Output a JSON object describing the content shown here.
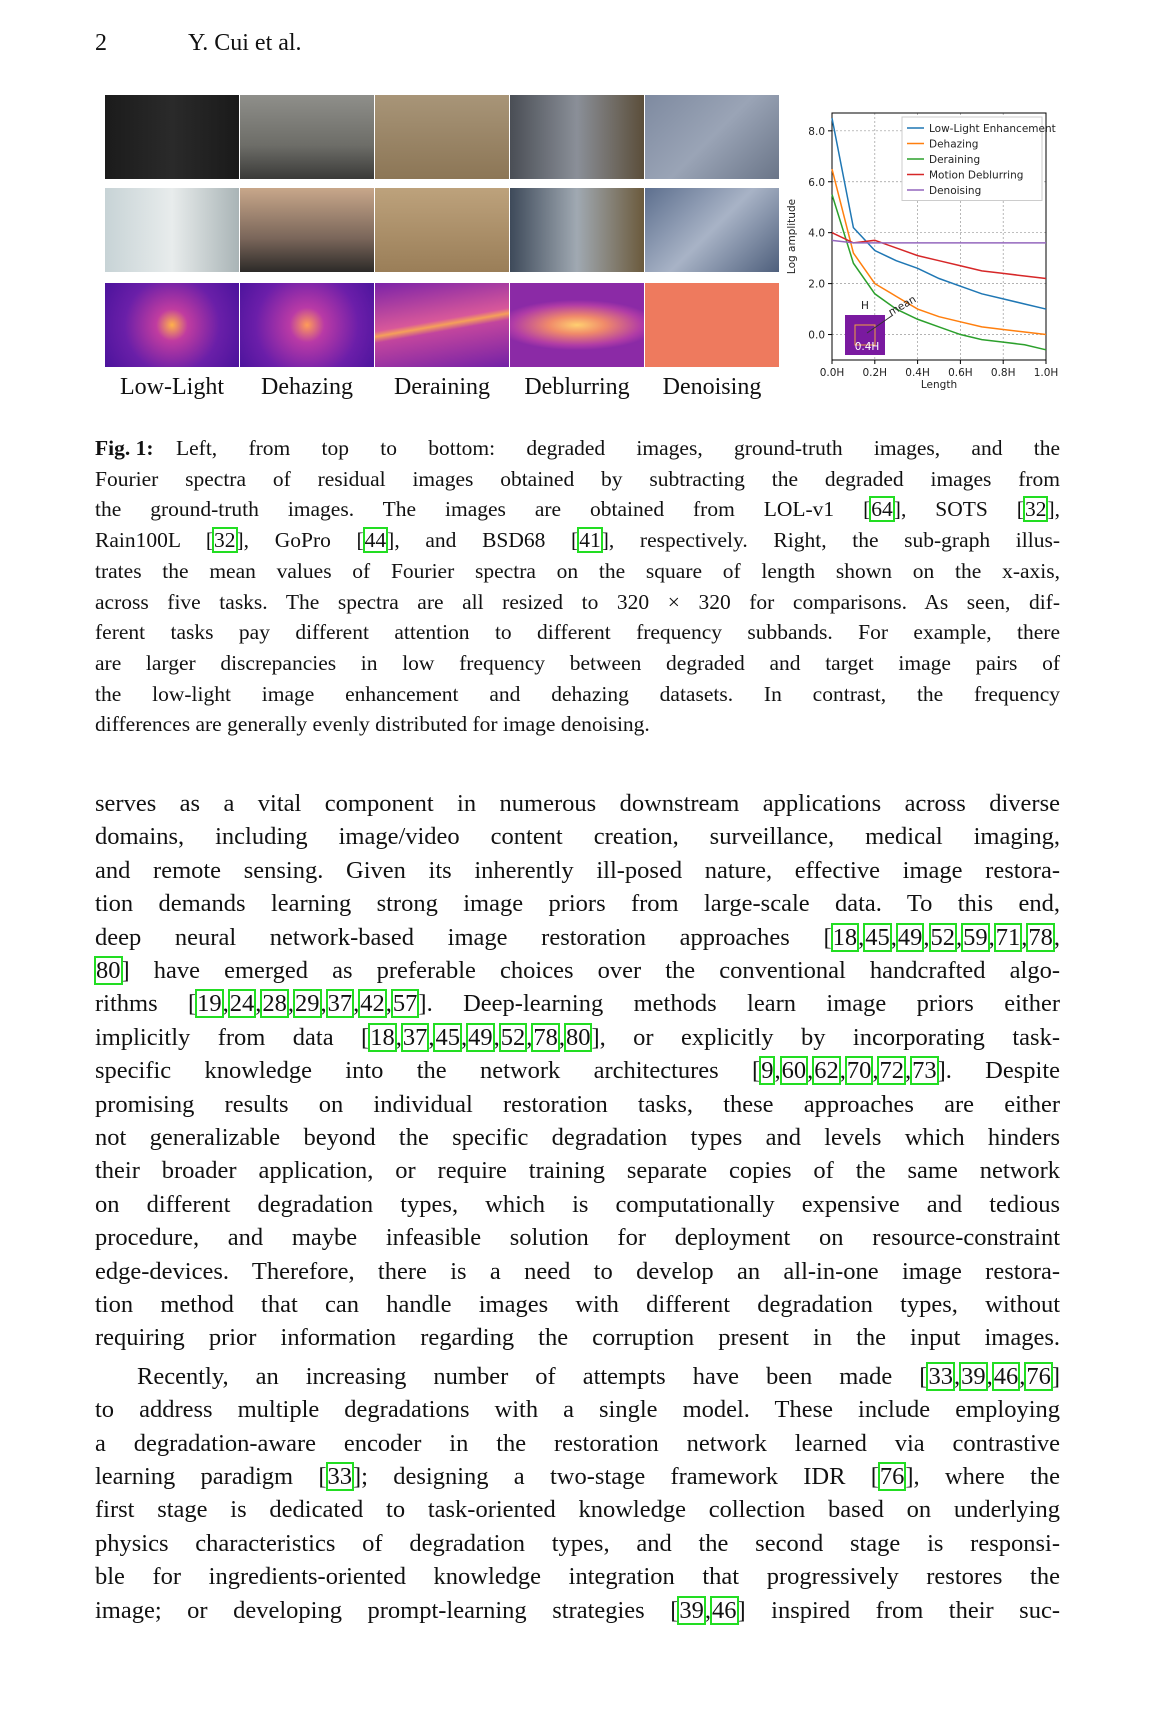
{
  "header": {
    "page_number": "2",
    "authors": "Y. Cui et al."
  },
  "figure": {
    "labels": [
      "Low-Light",
      "Dehazing",
      "Deraining",
      "Deblurring",
      "Denoising"
    ],
    "caption": {
      "label": "Fig. 1:",
      "lines": [
        "Left, from top to bottom: degraded images, ground-truth images, and the",
        "Fourier spectra of residual images obtained by subtracting the degraded images from",
        "the ground-truth images. The images are obtained from LOL-v1 [64], SOTS [32],",
        "Rain100L [32], GoPro [44], and BSD68 [41], respectively. Right, the sub-graph illus-",
        "trates the mean values of Fourier spectra on the square of length shown on the x-axis,",
        "across five tasks. The spectra are all resized to 320 × 320 for comparisons. As seen, dif-",
        "ferent tasks pay different attention to different frequency subbands. For example, there",
        "are larger discrepancies in low frequency between degraded and target image pairs of",
        "the low-light image enhancement and dehazing datasets. In contrast, the frequency",
        "differences are generally evenly distributed for image denoising."
      ]
    }
  },
  "chart_data": {
    "type": "line",
    "x_label": "Length",
    "y_label": "Log amplitude",
    "x": [
      0,
      0.1,
      0.2,
      0.3,
      0.4,
      0.5,
      0.6,
      0.7,
      0.8,
      0.9,
      1.0
    ],
    "xlim": [
      0,
      1.0
    ],
    "ylim": [
      -1.0,
      8.7
    ],
    "xticks": [
      {
        "value": 0,
        "label": "0.0H"
      },
      {
        "value": 0.2,
        "label": "0.2H"
      },
      {
        "value": 0.4,
        "label": "0.4H"
      },
      {
        "value": 0.6,
        "label": "0.6H"
      },
      {
        "value": 0.8,
        "label": "0.8H"
      },
      {
        "value": 1.0,
        "label": "1.0H"
      }
    ],
    "yticks": [
      {
        "value": 0,
        "label": "0.0"
      },
      {
        "value": 2,
        "label": "2.0"
      },
      {
        "value": 4,
        "label": "4.0"
      },
      {
        "value": 6,
        "label": "6.0"
      },
      {
        "value": 8,
        "label": "8.0"
      }
    ],
    "grid": true,
    "legend": "upper right",
    "inset_labels": [
      "H",
      "mean",
      "0.4H"
    ],
    "series": [
      {
        "name": "Low-Light Enhancement",
        "color": "#1f77b4",
        "values": [
          8.5,
          4.2,
          3.3,
          2.9,
          2.6,
          2.2,
          1.9,
          1.6,
          1.4,
          1.2,
          1.0
        ]
      },
      {
        "name": "Dehazing",
        "color": "#ff7f0e",
        "values": [
          6.5,
          3.2,
          2.0,
          1.5,
          1.0,
          0.7,
          0.5,
          0.3,
          0.2,
          0.1,
          0.0
        ]
      },
      {
        "name": "Deraining",
        "color": "#2ca02c",
        "values": [
          5.5,
          2.8,
          1.6,
          1.0,
          0.6,
          0.3,
          0.0,
          -0.2,
          -0.3,
          -0.4,
          -0.6
        ]
      },
      {
        "name": "Motion Deblurring",
        "color": "#d62728",
        "values": [
          4.0,
          3.6,
          3.7,
          3.4,
          3.1,
          2.9,
          2.7,
          2.5,
          2.4,
          2.3,
          2.2
        ]
      },
      {
        "name": "Denoising",
        "color": "#9467bd",
        "values": [
          3.7,
          3.6,
          3.6,
          3.6,
          3.6,
          3.6,
          3.6,
          3.6,
          3.6,
          3.6,
          3.6
        ]
      }
    ]
  },
  "body": {
    "paragraphs": [
      [
        "serves as a vital component in numerous downstream applications across diverse",
        "domains, including image/video content creation, surveillance, medical imaging,",
        "and remote sensing. Given its inherently ill-posed nature, effective image restora-",
        "tion demands learning strong image priors from large-scale data. To this end,",
        "deep neural network-based image restoration approaches [18,45,49,52,59,71,78,",
        "80] have emerged as preferable choices over the conventional handcrafted algo-",
        "rithms [19,24,28,29,37,42,57]. Deep-learning methods learn image priors either",
        "implicitly from data [18,37,45,49,52,78,80], or explicitly by incorporating task-",
        "specific knowledge into the network architectures [9,60,62,70,72,73]. Despite",
        "promising results on individual restoration tasks, these approaches are either",
        "not generalizable beyond the specific degradation types and levels which hinders",
        "their broader application, or require training separate copies of the same network",
        "on different degradation types, which is computationally expensive and tedious",
        "procedure, and maybe infeasible solution for deployment on resource-constraint",
        "edge-devices. Therefore, there is a need to develop an all-in-one image restora-",
        "tion method that can handle images with different degradation types, without",
        "requiring prior information regarding the corruption present in the input images."
      ],
      [
        "Recently, an increasing number of attempts have been made [33,39,46,76]",
        "to address multiple degradations with a single model. These include employing",
        "a degradation-aware encoder in the restoration network learned via contrastive",
        "learning paradigm [33]; designing a two-stage framework IDR [76], where the",
        "first stage is dedicated to task-oriented knowledge collection based on underlying",
        "physics characteristics of degradation types, and the second stage is responsi-",
        "ble for ingredients-oriented knowledge integration that progressively restores the",
        "image; or developing prompt-learning strategies [39,46] inspired from their suc-"
      ]
    ]
  }
}
